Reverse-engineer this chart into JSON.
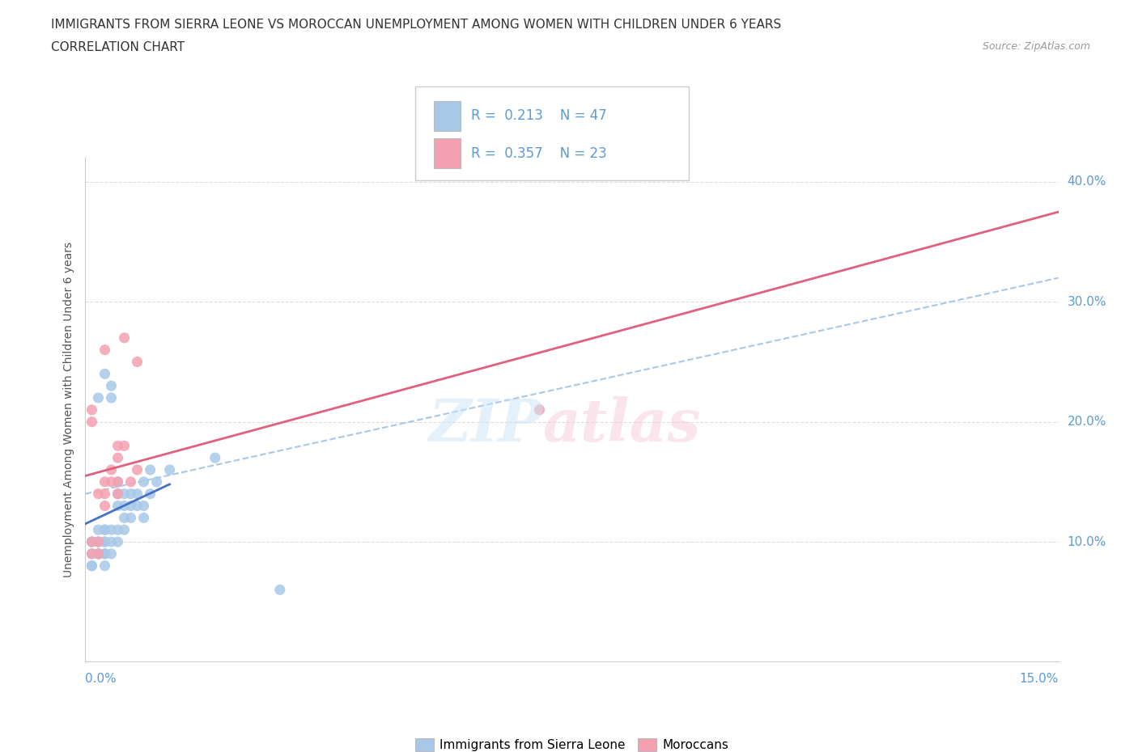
{
  "title_line1": "IMMIGRANTS FROM SIERRA LEONE VS MOROCCAN UNEMPLOYMENT AMONG WOMEN WITH CHILDREN UNDER 6 YEARS",
  "title_line2": "CORRELATION CHART",
  "source": "Source: ZipAtlas.com",
  "ylabel": "Unemployment Among Women with Children Under 6 years",
  "ytick_labels": [
    "10.0%",
    "20.0%",
    "30.0%",
    "40.0%"
  ],
  "ytick_vals": [
    0.1,
    0.2,
    0.3,
    0.4
  ],
  "xlim": [
    0.0,
    0.15
  ],
  "ylim": [
    0.0,
    0.42
  ],
  "color_blue": "#a8c8e8",
  "color_pink": "#f4a0b0",
  "line_blue_solid": "#4472c4",
  "line_pink_solid": "#e06080",
  "line_dashed": "#a8c8e8",
  "grid_color": "#dddddd",
  "grid_style": "--",
  "sierra_leone_x": [
    0.001,
    0.001,
    0.001,
    0.001,
    0.001,
    0.002,
    0.002,
    0.002,
    0.002,
    0.002,
    0.002,
    0.003,
    0.003,
    0.003,
    0.003,
    0.003,
    0.003,
    0.003,
    0.003,
    0.004,
    0.004,
    0.004,
    0.004,
    0.004,
    0.005,
    0.005,
    0.005,
    0.005,
    0.005,
    0.006,
    0.006,
    0.006,
    0.006,
    0.007,
    0.007,
    0.007,
    0.008,
    0.008,
    0.009,
    0.009,
    0.009,
    0.01,
    0.01,
    0.011,
    0.013,
    0.02,
    0.03
  ],
  "sierra_leone_y": [
    0.08,
    0.09,
    0.1,
    0.1,
    0.08,
    0.09,
    0.09,
    0.1,
    0.1,
    0.11,
    0.22,
    0.08,
    0.09,
    0.09,
    0.1,
    0.1,
    0.11,
    0.11,
    0.24,
    0.09,
    0.1,
    0.11,
    0.22,
    0.23,
    0.1,
    0.11,
    0.13,
    0.14,
    0.15,
    0.11,
    0.12,
    0.13,
    0.14,
    0.12,
    0.13,
    0.14,
    0.13,
    0.14,
    0.12,
    0.13,
    0.15,
    0.14,
    0.16,
    0.15,
    0.16,
    0.17,
    0.06
  ],
  "moroccan_x": [
    0.001,
    0.001,
    0.001,
    0.001,
    0.002,
    0.002,
    0.002,
    0.003,
    0.003,
    0.003,
    0.004,
    0.004,
    0.005,
    0.005,
    0.005,
    0.005,
    0.006,
    0.006,
    0.007,
    0.008,
    0.008,
    0.07,
    0.003
  ],
  "moroccan_y": [
    0.09,
    0.1,
    0.21,
    0.2,
    0.09,
    0.1,
    0.14,
    0.13,
    0.14,
    0.15,
    0.15,
    0.16,
    0.14,
    0.15,
    0.17,
    0.18,
    0.18,
    0.27,
    0.15,
    0.16,
    0.25,
    0.21,
    0.26
  ],
  "sl_line_x0": 0.0,
  "sl_line_x1": 0.013,
  "sl_line_y0": 0.115,
  "sl_line_y1": 0.148,
  "mo_line_x0": 0.0,
  "mo_line_x1": 0.15,
  "mo_line_y0": 0.155,
  "mo_line_y1": 0.375,
  "dash_line_x0": 0.0,
  "dash_line_x1": 0.15,
  "dash_line_y0": 0.14,
  "dash_line_y1": 0.32
}
